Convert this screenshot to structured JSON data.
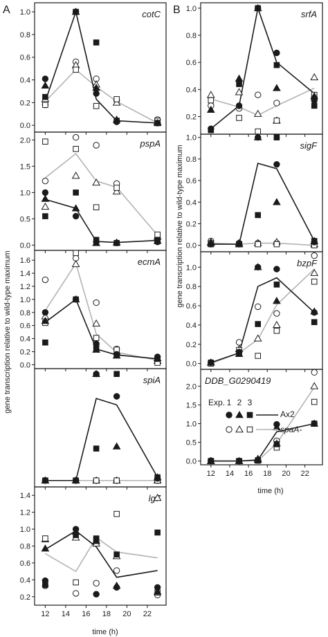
{
  "figure": {
    "panel_labels": [
      "A",
      "B"
    ],
    "ylabel": "gene transcription relative to wild-type maximum",
    "xlabel": "time (h)",
    "x_ticks": [
      12,
      14,
      16,
      18,
      20,
      22
    ],
    "legend": {
      "header": "Exp.",
      "exp_labels": [
        "1",
        "2",
        "3"
      ],
      "series": [
        {
          "name": "Ax2",
          "color": "#1a1a1a",
          "markers": "filled"
        },
        {
          "name": "spaA-",
          "color": "#b3b3b3",
          "markers": "open"
        }
      ]
    }
  },
  "chart_data": [
    {
      "type": "scatter",
      "panel": "A",
      "gene": "cotC",
      "xlim": [
        11.5,
        23.5
      ],
      "ylim": [
        -0.06,
        1.08
      ],
      "yticks": [
        0.0,
        0.2,
        0.4,
        0.6,
        0.8,
        1.0
      ],
      "x": [
        12,
        15,
        17,
        19,
        23
      ],
      "series": [
        {
          "name": "Ax2",
          "line": [
            0.21,
            1.0,
            0.23,
            0.04,
            0.02
          ],
          "exp": [
            [
              0.41,
              1.0,
              0.28,
              0.03,
              0.02
            ],
            [
              0.35,
              1.0,
              0.33,
              0.05,
              0.02
            ],
            [
              0.25,
              1.0,
              0.73,
              0.04,
              0.02
            ]
          ]
        },
        {
          "name": "spaA-",
          "line": [
            0.21,
            0.49,
            0.34,
            0.21,
            0.02
          ],
          "exp": [
            [
              0.18,
              0.56,
              0.41,
              0.22,
              0.05
            ],
            [
              0.23,
              0.53,
              0.36,
              0.2,
              0.03
            ],
            [
              0.18,
              0.49,
              0.17,
              0.23,
              0.04
            ]
          ]
        }
      ]
    },
    {
      "type": "scatter",
      "panel": "A",
      "gene": "pspA",
      "xlim": [
        11.5,
        23.5
      ],
      "ylim": [
        -0.1,
        2.15
      ],
      "yticks": [
        0.0,
        0.5,
        1.0,
        1.5,
        2.0
      ],
      "x": [
        12,
        15,
        17,
        19,
        23
      ],
      "series": [
        {
          "name": "Ax2",
          "line": [
            0.87,
            0.7,
            0.07,
            0.05,
            0.09
          ],
          "exp": [
            [
              1.0,
              0.55,
              0.06,
              0.04,
              0.06
            ],
            [
              0.88,
              0.7,
              0.04,
              0.05,
              0.08
            ],
            [
              0.55,
              1.0,
              0.1,
              0.04,
              0.1
            ]
          ]
        },
        {
          "name": "spaA-",
          "line": [
            1.28,
            1.74,
            1.22,
            1.1,
            0.19
          ],
          "exp": [
            [
              1.22,
              2.05,
              1.9,
              1.17,
              0.13
            ],
            [
              0.73,
              1.32,
              1.19,
              1.02,
              0.16
            ],
            [
              1.97,
              1.83,
              0.72,
              1.09,
              0.2
            ]
          ]
        }
      ]
    },
    {
      "type": "scatter",
      "panel": "A",
      "gene": "ecmA",
      "xlim": [
        11.5,
        23.5
      ],
      "ylim": [
        -0.06,
        1.75
      ],
      "yticks": [
        0.0,
        0.2,
        0.4,
        0.6,
        0.8,
        1.0,
        1.2,
        1.4,
        1.6
      ],
      "x": [
        12,
        15,
        17,
        19,
        23
      ],
      "series": [
        {
          "name": "Ax2",
          "line": [
            0.65,
            1.0,
            0.24,
            0.15,
            0.09
          ],
          "exp": [
            [
              0.8,
              1.0,
              0.32,
              0.16,
              0.12
            ],
            [
              0.67,
              1.0,
              0.23,
              0.14,
              0.1
            ],
            [
              0.34,
              1.0,
              0.26,
              0.15,
              0.09
            ]
          ]
        },
        {
          "name": "spaA-",
          "line": [
            0.83,
            1.55,
            0.47,
            0.19,
            0.07
          ],
          "exp": [
            [
              1.3,
              1.63,
              0.95,
              0.24,
              0.06
            ],
            [
              0.74,
              1.54,
              0.63,
              0.2,
              0.06
            ],
            [
              0.64,
              1.71,
              0.41,
              0.23,
              0.03
            ]
          ]
        }
      ]
    },
    {
      "type": "scatter",
      "panel": "A",
      "gene": "spiA",
      "xlim": [
        11.5,
        23.5
      ],
      "ylim": [
        -0.06,
        1.05
      ],
      "yticks": [],
      "x": [
        12,
        15,
        17,
        19,
        23
      ],
      "series": [
        {
          "name": "Ax2",
          "line": [
            0.0,
            0.0,
            0.77,
            0.71,
            0.03
          ],
          "exp": [
            [
              0.0,
              0.0,
              1.0,
              0.79,
              0.02
            ],
            [
              0.0,
              0.0,
              1.0,
              0.32,
              0.03
            ],
            [
              0.0,
              0.0,
              0.3,
              1.0,
              0.03
            ]
          ]
        },
        {
          "name": "spaA-",
          "line": [
            0.0,
            0.0,
            0.0,
            0.0,
            0.0
          ],
          "exp": [
            [
              0.0,
              0.0,
              0.0,
              0.0,
              0.0
            ],
            [
              0.0,
              0.0,
              0.0,
              0.0,
              0.0
            ],
            [
              0.0,
              0.0,
              0.0,
              0.0,
              0.0
            ]
          ]
        }
      ]
    },
    {
      "type": "scatter",
      "panel": "A",
      "gene": "lg7",
      "xlim": [
        11.5,
        23.5
      ],
      "ylim": [
        0.1,
        1.5
      ],
      "yticks": [
        0.2,
        0.4,
        0.6,
        0.8,
        1.0,
        1.2,
        1.4
      ],
      "x": [
        12,
        15,
        17,
        19,
        23
      ],
      "series": [
        {
          "name": "Ax2",
          "line": [
            0.76,
            0.98,
            0.79,
            0.43,
            0.51
          ],
          "exp": [
            [
              0.39,
              1.0,
              0.23,
              0.31,
              0.31
            ],
            [
              0.77,
              0.97,
              0.86,
              0.33,
              0.26
            ],
            [
              0.34,
              0.93,
              0.89,
              0.7,
              0.96
            ]
          ]
        },
        {
          "name": "spaA-",
          "line": [
            0.71,
            0.5,
            0.9,
            0.73,
            0.66
          ],
          "exp": [
            [
              0.33,
              0.24,
              0.36,
              0.51,
              0.22
            ],
            [
              0.88,
              0.9,
              0.83,
              0.68,
              1.37
            ],
            [
              0.89,
              0.37,
              0.88,
              1.18,
              0.25
            ]
          ]
        }
      ]
    },
    {
      "type": "scatter",
      "panel": "B",
      "gene": "srfA",
      "xlim": [
        11.5,
        23.5
      ],
      "ylim": [
        0.07,
        1.04
      ],
      "yticks": [
        0.2,
        0.4,
        0.6,
        0.8,
        1.0
      ],
      "x": [
        12,
        15,
        17,
        19,
        23
      ],
      "series": [
        {
          "name": "Ax2",
          "line": [
            0.11,
            0.28,
            1.0,
            0.6,
            0.37
          ],
          "exp": [
            [
              0.11,
              0.28,
              1.0,
              0.67,
              0.32
            ],
            [
              0.25,
              0.48,
              1.0,
              0.41,
              0.35
            ],
            [
              0.1,
              0.44,
              1.0,
              0.58,
              0.28
            ]
          ]
        },
        {
          "name": "spaA-",
          "line": [
            0.33,
            0.27,
            0.21,
            0.28,
            0.41
          ],
          "exp": [
            [
              0.28,
              0.26,
              0.36,
              0.3,
              0.34
            ],
            [
              0.36,
              0.38,
              0.22,
              0.17,
              0.49
            ],
            [
              0.32,
              0.19,
              0.09,
              0.17,
              0.36
            ]
          ]
        }
      ]
    },
    {
      "type": "scatter",
      "panel": "B",
      "gene": "sigF",
      "xlim": [
        11.5,
        23.5
      ],
      "ylim": [
        -0.06,
        1.03
      ],
      "yticks": [
        0.0,
        0.2,
        0.4,
        0.6,
        0.8,
        1.0
      ],
      "x": [
        12,
        15,
        17,
        19,
        23
      ],
      "series": [
        {
          "name": "Ax2",
          "line": [
            0.01,
            0.01,
            0.76,
            0.71,
            0.04
          ],
          "exp": [
            [
              0.01,
              0.01,
              1.0,
              0.75,
              0.03
            ],
            [
              0.02,
              0.01,
              1.0,
              0.4,
              0.04
            ],
            [
              0.01,
              0.01,
              0.28,
              1.0,
              0.04
            ]
          ]
        },
        {
          "name": "spaA-",
          "line": [
            0.02,
            0.01,
            0.02,
            0.02,
            0.0
          ],
          "exp": [
            [
              0.04,
              0.02,
              0.02,
              0.02,
              0.01
            ],
            [
              0.03,
              0.02,
              0.02,
              0.03,
              0.01
            ],
            [
              0.02,
              0.01,
              0.01,
              0.01,
              0.0
            ]
          ]
        }
      ]
    },
    {
      "type": "scatter",
      "panel": "B",
      "gene": "bzpF",
      "xlim": [
        11.5,
        23.5
      ],
      "ylim": [
        -0.06,
        1.16
      ],
      "yticks": [
        0.0,
        0.2,
        0.4,
        0.6,
        0.8,
        1.0
      ],
      "x": [
        12,
        15,
        17,
        19,
        23
      ],
      "series": [
        {
          "name": "Ax2",
          "line": [
            0.01,
            0.11,
            0.8,
            0.89,
            0.53
          ],
          "exp": [
            [
              0.01,
              0.12,
              1.0,
              0.98,
              0.53
            ],
            [
              0.01,
              0.1,
              1.0,
              0.65,
              0.54
            ],
            [
              0.01,
              0.1,
              0.41,
              0.82,
              0.43
            ]
          ]
        },
        {
          "name": "spaA-",
          "line": [
            0.0,
            0.11,
            0.25,
            0.61,
            0.98
          ],
          "exp": [
            [
              0.01,
              0.22,
              0.59,
              0.52,
              1.12
            ],
            [
              0.01,
              0.15,
              0.26,
              0.4,
              0.94
            ],
            [
              0.0,
              0.14,
              0.08,
              0.34,
              0.85
            ]
          ]
        }
      ]
    },
    {
      "type": "scatter",
      "panel": "B",
      "gene": "DDB_G0290419",
      "xlim": [
        11.5,
        23.5
      ],
      "ylim": [
        -0.1,
        2.45
      ],
      "yticks": [
        0.0,
        0.5,
        1.0,
        1.5,
        2.0
      ],
      "x": [
        12,
        15,
        17,
        19,
        23
      ],
      "series": [
        {
          "name": "Ax2",
          "line": [
            0.0,
            0.0,
            0.03,
            0.78,
            1.0
          ],
          "exp": [
            [
              0.0,
              0.0,
              0.02,
              0.98,
              1.0
            ],
            [
              0.0,
              0.0,
              0.06,
              0.9,
              1.0
            ],
            [
              0.0,
              0.0,
              0.02,
              0.45,
              1.0
            ]
          ]
        },
        {
          "name": "spaA-",
          "line": [
            0.0,
            0.0,
            0.01,
            0.47,
            1.97
          ],
          "exp": [
            [
              0.01,
              0.0,
              0.03,
              0.54,
              2.37
            ],
            [
              0.0,
              0.0,
              0.03,
              0.47,
              2.0
            ],
            [
              0.0,
              0.0,
              0.01,
              0.36,
              1.58
            ]
          ]
        }
      ]
    }
  ]
}
